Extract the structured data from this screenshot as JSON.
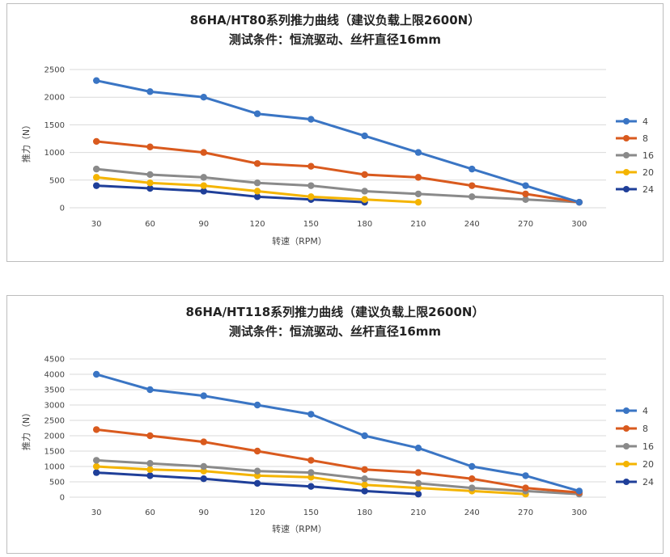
{
  "colors": {
    "4": "#3a75c4",
    "8": "#d95a1e",
    "16": "#8a8a8a",
    "20": "#f4b400",
    "24": "#1f3f99",
    "grid": "#d9d9d9"
  },
  "chart_data": [
    {
      "type": "line",
      "title": "86HA/HT80系列推力曲线（建议负载上限2600N）",
      "subtitle": "测试条件：恒流驱动、丝杆直径16mm",
      "xlabel": "转速（RPM）",
      "ylabel": "推力（N）",
      "categories": [
        "30",
        "60",
        "90",
        "120",
        "150",
        "180",
        "210",
        "240",
        "270",
        "300"
      ],
      "ylim": [
        0,
        2500
      ],
      "yticks": [
        0,
        500,
        1000,
        1500,
        2000,
        2500
      ],
      "grid": true,
      "legend_position": "right",
      "series": [
        {
          "name": "4",
          "values": [
            2300,
            2100,
            2000,
            1700,
            1600,
            1300,
            1000,
            700,
            400,
            100
          ]
        },
        {
          "name": "8",
          "values": [
            1200,
            1100,
            1000,
            800,
            750,
            600,
            550,
            400,
            250,
            100
          ]
        },
        {
          "name": "16",
          "values": [
            700,
            600,
            550,
            450,
            400,
            300,
            250,
            200,
            150,
            100
          ]
        },
        {
          "name": "20",
          "values": [
            550,
            450,
            400,
            300,
            200,
            150,
            100,
            null,
            null,
            null
          ]
        },
        {
          "name": "24",
          "values": [
            400,
            350,
            300,
            200,
            150,
            100,
            null,
            null,
            null,
            null
          ]
        }
      ]
    },
    {
      "type": "line",
      "title": "86HA/HT118系列推力曲线（建议负载上限2600N）",
      "subtitle": "测试条件：恒流驱动、丝杆直径16mm",
      "xlabel": "转速（RPM）",
      "ylabel": "推力（N）",
      "categories": [
        "30",
        "60",
        "90",
        "120",
        "150",
        "180",
        "210",
        "240",
        "270",
        "300"
      ],
      "ylim": [
        0,
        4500
      ],
      "yticks": [
        0,
        500,
        1000,
        1500,
        2000,
        2500,
        3000,
        3500,
        4000,
        4500
      ],
      "grid": true,
      "legend_position": "right",
      "series": [
        {
          "name": "4",
          "values": [
            4000,
            3500,
            3300,
            3000,
            2700,
            2000,
            1600,
            1000,
            700,
            200
          ]
        },
        {
          "name": "8",
          "values": [
            2200,
            2000,
            1800,
            1500,
            1200,
            900,
            800,
            600,
            300,
            150
          ]
        },
        {
          "name": "16",
          "values": [
            1200,
            1100,
            1000,
            850,
            800,
            600,
            450,
            300,
            200,
            100
          ]
        },
        {
          "name": "20",
          "values": [
            1000,
            900,
            850,
            700,
            650,
            400,
            300,
            200,
            100,
            null
          ]
        },
        {
          "name": "24",
          "values": [
            800,
            700,
            600,
            450,
            350,
            200,
            100,
            null,
            null,
            null
          ]
        }
      ]
    }
  ]
}
